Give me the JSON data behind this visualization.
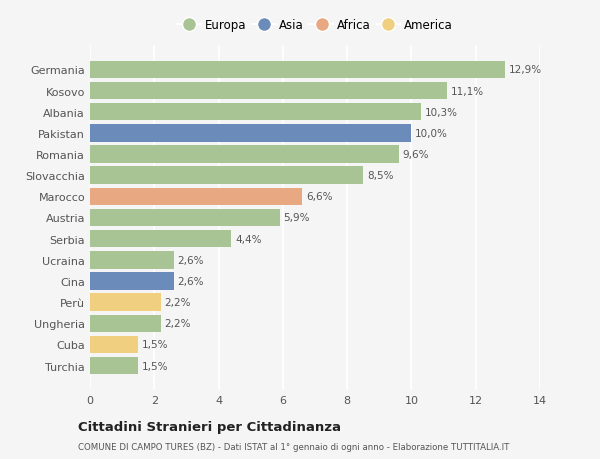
{
  "categories": [
    "Turchia",
    "Cuba",
    "Ungheria",
    "Perù",
    "Cina",
    "Ucraina",
    "Serbia",
    "Austria",
    "Marocco",
    "Slovacchia",
    "Romania",
    "Pakistan",
    "Albania",
    "Kosovo",
    "Germania"
  ],
  "values": [
    1.5,
    1.5,
    2.2,
    2.2,
    2.6,
    2.6,
    4.4,
    5.9,
    6.6,
    8.5,
    9.6,
    10.0,
    10.3,
    11.1,
    12.9
  ],
  "labels": [
    "1,5%",
    "1,5%",
    "2,2%",
    "2,2%",
    "2,6%",
    "2,6%",
    "4,4%",
    "5,9%",
    "6,6%",
    "8,5%",
    "9,6%",
    "10,0%",
    "10,3%",
    "11,1%",
    "12,9%"
  ],
  "continents": [
    "Europa",
    "America",
    "Europa",
    "America",
    "Asia",
    "Europa",
    "Europa",
    "Europa",
    "Africa",
    "Europa",
    "Europa",
    "Asia",
    "Europa",
    "Europa",
    "Europa"
  ],
  "continent_colors": {
    "Europa": "#a8c494",
    "Asia": "#6b8cba",
    "Africa": "#e8a882",
    "America": "#f0d080"
  },
  "legend_order": [
    "Europa",
    "Asia",
    "Africa",
    "America"
  ],
  "title": "Cittadini Stranieri per Cittadinanza",
  "subtitle": "COMUNE DI CAMPO TURES (BZ) - Dati ISTAT al 1° gennaio di ogni anno - Elaborazione TUTTITALIA.IT",
  "xlim": [
    0,
    14
  ],
  "xticks": [
    0,
    2,
    4,
    6,
    8,
    10,
    12,
    14
  ],
  "bg_color": "#f5f5f5",
  "grid_color": "#ffffff",
  "bar_height": 0.82
}
